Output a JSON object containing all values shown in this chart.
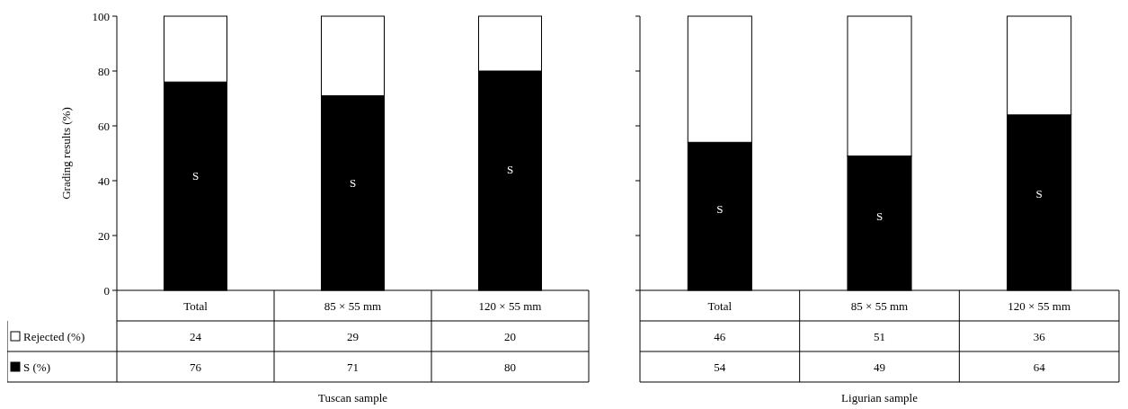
{
  "chart_data": [
    {
      "type": "bar",
      "stacked": true,
      "ylabel": "Grading results (%)",
      "xlabel": "Tuscan sample",
      "categories": [
        "Total",
        "85 × 55 mm",
        "120 × 55 mm"
      ],
      "series": [
        {
          "name": "S (%)",
          "color": "#000000",
          "values": [
            76,
            71,
            80
          ]
        },
        {
          "name": "Rejected (%)",
          "color": "#ffffff",
          "values": [
            24,
            29,
            20
          ]
        }
      ],
      "ylim": [
        0,
        100
      ],
      "yticks": [
        0,
        20,
        40,
        60,
        80,
        100
      ],
      "data_labels": true,
      "legend": "bottom left",
      "annotations": [
        "S",
        "S",
        "S"
      ]
    },
    {
      "type": "bar",
      "stacked": true,
      "xlabel": "Ligurian sample",
      "categories": [
        "Total",
        "85 × 55 mm",
        "120 × 55 mm"
      ],
      "series": [
        {
          "color": "#000000",
          "values": [
            54,
            49,
            64
          ]
        },
        {
          "color": "#ffffff",
          "values": [
            46,
            51,
            36
          ]
        }
      ],
      "ylim": [
        0,
        100
      ],
      "yticks": [
        0,
        20,
        40,
        60,
        80,
        100
      ],
      "tick_labels": "x",
      "data_labels": true,
      "annotations": [
        "S",
        "S",
        "S"
      ]
    }
  ]
}
